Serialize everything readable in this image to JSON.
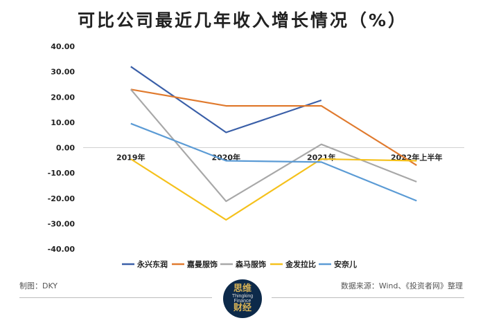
{
  "chart_data": {
    "type": "line",
    "title": "可比公司最近几年收入增长情况（%）",
    "xlabel": "",
    "ylabel": "",
    "categories": [
      "2019年",
      "2020年",
      "2021年",
      "2022年上半年"
    ],
    "ylim": [
      -40,
      40
    ],
    "yticks": [
      "40.00",
      "30.00",
      "20.00",
      "10.00",
      "0.00",
      "-10.00",
      "-20.00",
      "-30.00",
      "-40.00"
    ],
    "grid": false,
    "legend_position": "bottom",
    "series": [
      {
        "name": "永兴东润",
        "color": "#3a5fa8",
        "values": [
          32.0,
          6.0,
          18.7,
          null
        ]
      },
      {
        "name": "嘉曼服饰",
        "color": "#e07a2e",
        "values": [
          23.0,
          16.5,
          16.5,
          -7.0
        ]
      },
      {
        "name": "森马服饰",
        "color": "#a8a8a8",
        "values": [
          23.0,
          -21.2,
          1.3,
          -13.5
        ]
      },
      {
        "name": "金发拉比",
        "color": "#f5c11c",
        "values": [
          -4.5,
          -28.5,
          -4.5,
          -5.2
        ]
      },
      {
        "name": "安奈儿",
        "color": "#5b9bd5",
        "values": [
          9.5,
          -5.2,
          -5.7,
          -21.0
        ]
      }
    ]
  },
  "footer": {
    "left": "制图：DKY",
    "right": "数据来源：Wind、《投资者网》整理"
  },
  "logo": {
    "cn_top": "思维",
    "en_1": "Thingking",
    "en_2": "Finance",
    "cn_bottom": "财经"
  }
}
